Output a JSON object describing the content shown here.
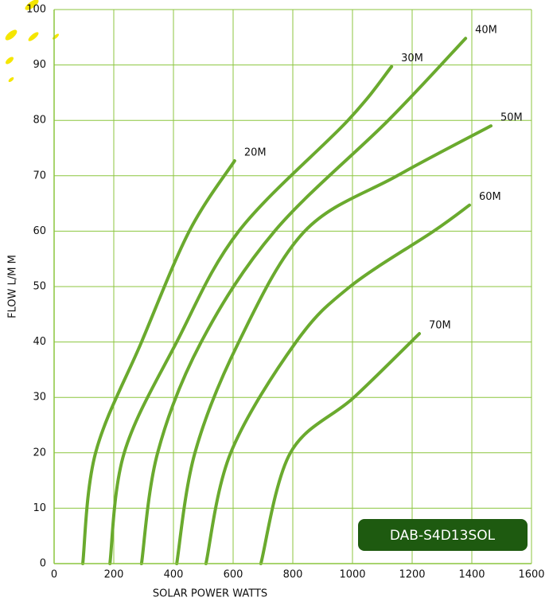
{
  "chart_data": {
    "type": "line",
    "x_label": "SOLAR POWER WATTS",
    "y_label": "FLOW L/M M",
    "annotation": "DAB-S4D13SOL",
    "xlim": [
      0,
      1600
    ],
    "xticks": [
      0,
      200,
      400,
      600,
      800,
      1000,
      1200,
      1400,
      1600
    ],
    "ylim": [
      0,
      100
    ],
    "yticks": [
      0,
      10,
      20,
      30,
      40,
      50,
      60,
      70,
      80,
      90,
      100
    ],
    "grid": true,
    "color": "#6aaa2e",
    "series": [
      {
        "name": "20M",
        "x": [
          96,
          139,
          293,
          453,
          605
        ],
        "values": [
          0,
          20,
          40,
          60,
          72.7
        ]
      },
      {
        "name": "30M",
        "x": [
          187,
          235,
          411,
          619,
          985,
          1131
        ],
        "values": [
          0,
          20,
          40,
          60,
          80,
          89.7
        ]
      },
      {
        "name": "40M",
        "x": [
          293,
          347,
          493,
          739,
          1120,
          1379
        ],
        "values": [
          0,
          20,
          40,
          60,
          80,
          94.8
        ]
      },
      {
        "name": "50M",
        "x": [
          411,
          472,
          619,
          840,
          1150,
          1464
        ],
        "values": [
          0,
          20,
          40,
          60,
          70,
          79
        ]
      },
      {
        "name": "60M",
        "x": [
          509,
          592,
          811,
          992,
          1272,
          1392
        ],
        "values": [
          0,
          20,
          40,
          50,
          60,
          64.7
        ]
      },
      {
        "name": "70M",
        "x": [
          693,
          792,
          1005,
          1224
        ],
        "values": [
          0,
          20,
          30,
          41.5
        ]
      }
    ]
  }
}
